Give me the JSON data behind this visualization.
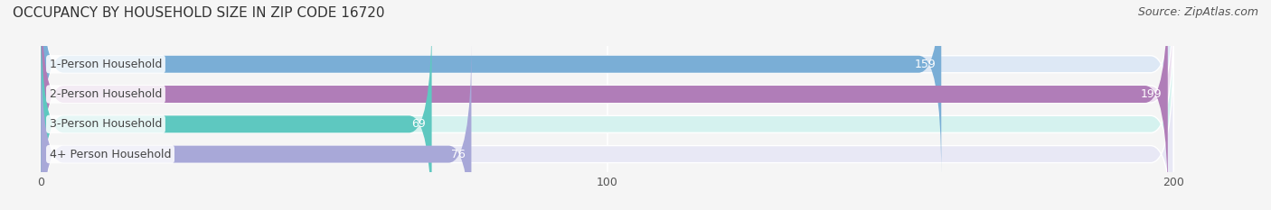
{
  "title": "OCCUPANCY BY HOUSEHOLD SIZE IN ZIP CODE 16720",
  "source": "Source: ZipAtlas.com",
  "categories": [
    "1-Person Household",
    "2-Person Household",
    "3-Person Household",
    "4+ Person Household"
  ],
  "values": [
    159,
    199,
    69,
    76
  ],
  "bar_colors": [
    "#7aaed6",
    "#b07db8",
    "#5ec8c0",
    "#a8a8d8"
  ],
  "bar_bg_colors": [
    "#dde8f5",
    "#ecdff0",
    "#d5f2ef",
    "#e8e8f5"
  ],
  "xlim": [
    -5,
    215
  ],
  "xticks": [
    0,
    100,
    200
  ],
  "title_fontsize": 11,
  "source_fontsize": 9,
  "label_fontsize": 9,
  "value_fontsize": 9,
  "tick_fontsize": 9,
  "background_color": "#f5f5f5"
}
